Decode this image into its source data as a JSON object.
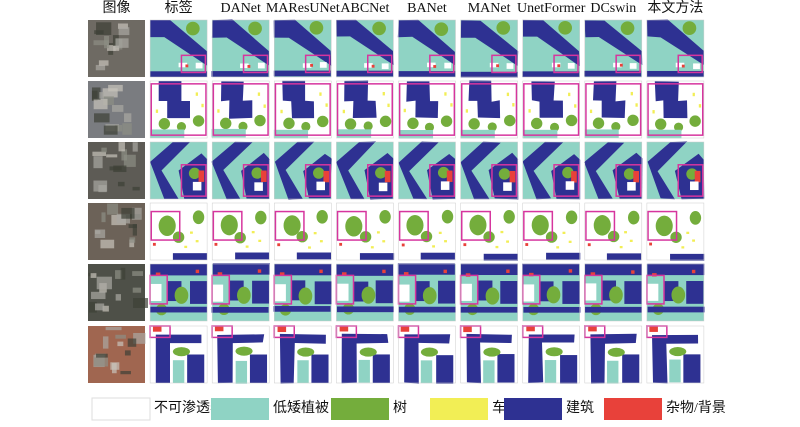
{
  "columns": [
    "图像",
    "标签",
    "DANet",
    "MAResUNet",
    "ABCNet",
    "BANet",
    "MANet",
    "UnetFormer",
    "DCswin",
    "本文方法"
  ],
  "legend": [
    {
      "label": "不可渗透表面",
      "color": "#ffffff"
    },
    {
      "label": "低矮植被",
      "color": "#8fd3c4"
    },
    {
      "label": "树",
      "color": "#74ad3c"
    },
    {
      "label": "车",
      "color": "#f2ee55"
    },
    {
      "label": "建筑",
      "color": "#2e3192"
    },
    {
      "label": "杂物/背景",
      "color": "#e8413a"
    }
  ]
}
